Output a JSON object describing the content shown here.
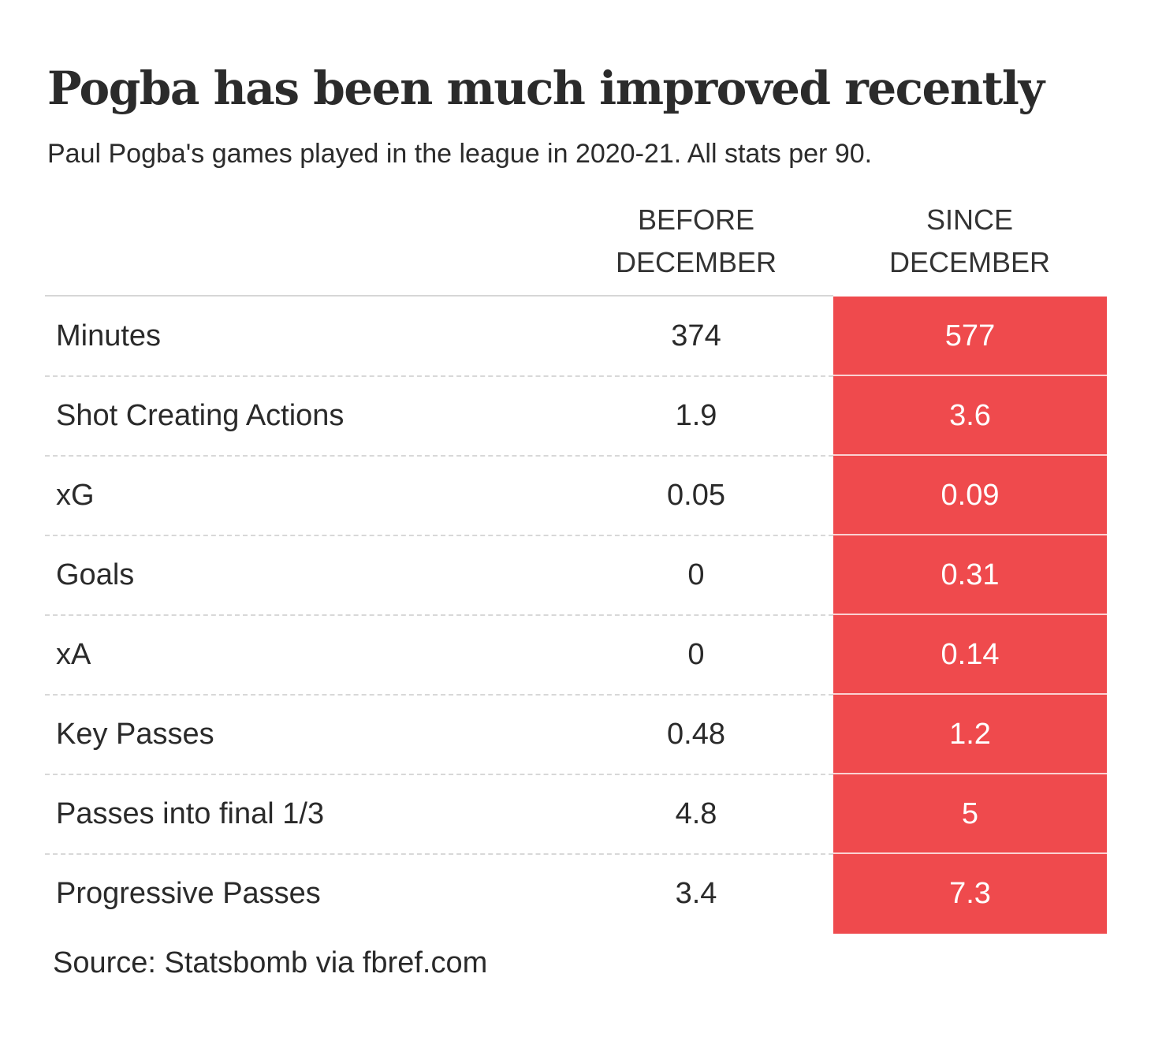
{
  "chart_data": {
    "type": "table",
    "title": "Pogba has been much improved recently",
    "subtitle": "Paul Pogba's games played in the league in 2020-21. All stats per 90.",
    "columns": [
      {
        "line1": "BEFORE",
        "line2": "DECEMBER"
      },
      {
        "line1": "SINCE",
        "line2": "DECEMBER"
      }
    ],
    "rows": [
      {
        "label": "Minutes",
        "before": "374",
        "since": "577"
      },
      {
        "label": "Shot Creating Actions",
        "before": "1.9",
        "since": "3.6"
      },
      {
        "label": "xG",
        "before": "0.05",
        "since": "0.09"
      },
      {
        "label": "Goals",
        "before": "0",
        "since": "0.31"
      },
      {
        "label": "xA",
        "before": "0",
        "since": "0.14"
      },
      {
        "label": "Key Passes",
        "before": "0.48",
        "since": "1.2"
      },
      {
        "label": "Passes into final 1/3",
        "before": "4.8",
        "since": "5"
      },
      {
        "label": "Progressive Passes",
        "before": "3.4",
        "since": "7.3"
      }
    ],
    "highlight_color": "#ef4a4d",
    "source": "Source: Statsbomb via fbref.com"
  }
}
